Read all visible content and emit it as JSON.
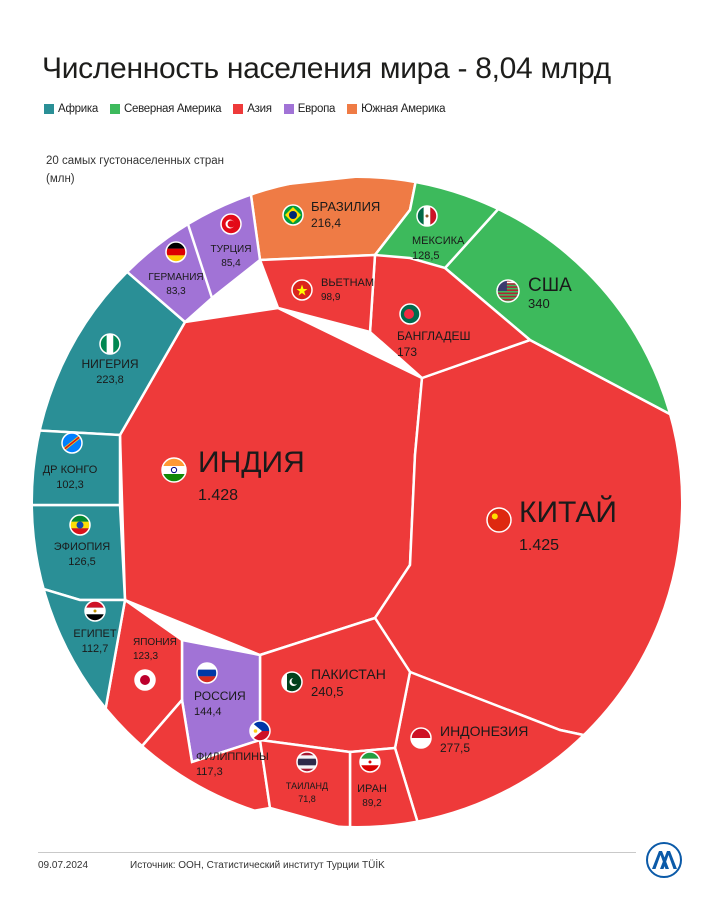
{
  "header": {
    "title": "Численность населения мира - 8,04 млрд",
    "subtitle_line1": "20 самых густонаселенных стран",
    "subtitle_line2": "(млн)"
  },
  "legend": [
    {
      "label": "Африка",
      "color": "#2a8f96"
    },
    {
      "label": "Северная Америка",
      "color": "#3dba5c"
    },
    {
      "label": "Азия",
      "color": "#ee3a3a"
    },
    {
      "label": "Европа",
      "color": "#a173d6"
    },
    {
      "label": "Южная Америка",
      "color": "#ef7b45"
    }
  ],
  "chart_data": {
    "type": "voronoi-treemap",
    "title": "Численность населения мира - 8,04 млрд",
    "unit": "млн",
    "items": [
      {
        "country": "ИНДИЯ",
        "value_label": "1.428",
        "value": 1428,
        "region": "Азия",
        "flag": "india-flag"
      },
      {
        "country": "КИТАЙ",
        "value_label": "1.425",
        "value": 1425,
        "region": "Азия",
        "flag": "china-flag"
      },
      {
        "country": "США",
        "value_label": "340",
        "value": 340,
        "region": "Северная Америка",
        "flag": "usa-flag"
      },
      {
        "country": "ИНДОНЕЗИЯ",
        "value_label": "277,5",
        "value": 277.5,
        "region": "Азия",
        "flag": "indonesia-flag"
      },
      {
        "country": "ПАКИСТАН",
        "value_label": "240,5",
        "value": 240.5,
        "region": "Азия",
        "flag": "pakistan-flag"
      },
      {
        "country": "НИГЕРИЯ",
        "value_label": "223,8",
        "value": 223.8,
        "region": "Африка",
        "flag": "nigeria-flag"
      },
      {
        "country": "БРАЗИЛИЯ",
        "value_label": "216,4",
        "value": 216.4,
        "region": "Южная Америка",
        "flag": "brazil-flag"
      },
      {
        "country": "БАНГЛАДЕШ",
        "value_label": "173",
        "value": 173,
        "region": "Азия",
        "flag": "bangladesh-flag"
      },
      {
        "country": "РОССИЯ",
        "value_label": "144,4",
        "value": 144.4,
        "region": "Европа",
        "flag": "russia-flag"
      },
      {
        "country": "МЕКСИКА",
        "value_label": "128,5",
        "value": 128.5,
        "region": "Северная Америка",
        "flag": "mexico-flag"
      },
      {
        "country": "ЭФИОПИЯ",
        "value_label": "126,5",
        "value": 126.5,
        "region": "Африка",
        "flag": "ethiopia-flag"
      },
      {
        "country": "ЯПОНИЯ",
        "value_label": "123,3",
        "value": 123.3,
        "region": "Азия",
        "flag": "japan-flag"
      },
      {
        "country": "ФИЛИППИНЫ",
        "value_label": "117,3",
        "value": 117.3,
        "region": "Азия",
        "flag": "philippines-flag"
      },
      {
        "country": "ЕГИПЕТ",
        "value_label": "112,7",
        "value": 112.7,
        "region": "Африка",
        "flag": "egypt-flag"
      },
      {
        "country": "ДР КОНГО",
        "value_label": "102,3",
        "value": 102.3,
        "region": "Африка",
        "flag": "drcongo-flag"
      },
      {
        "country": "ВЬЕТНАМ",
        "value_label": "98,9",
        "value": 98.9,
        "region": "Азия",
        "flag": "vietnam-flag"
      },
      {
        "country": "ИРАН",
        "value_label": "89,2",
        "value": 89.2,
        "region": "Азия",
        "flag": "iran-flag"
      },
      {
        "country": "ТУРЦИЯ",
        "value_label": "85,4",
        "value": 85.4,
        "region": "Европа",
        "flag": "turkey-flag"
      },
      {
        "country": "ГЕРМАНИЯ",
        "value_label": "83,3",
        "value": 83.3,
        "region": "Европа",
        "flag": "germany-flag"
      },
      {
        "country": "ТАИЛАНД",
        "value_label": "71,8",
        "value": 71.8,
        "region": "Азия",
        "flag": "thailand-flag"
      }
    ]
  },
  "footer": {
    "date": "09.07.2024",
    "source": "Источник: ООН, Статистический институт Турции TÜİK",
    "logo_text": "AA"
  }
}
